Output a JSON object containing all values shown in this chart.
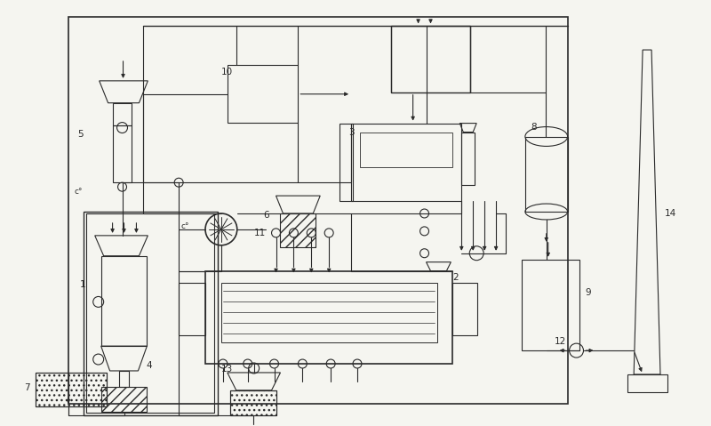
{
  "fig_width": 8.0,
  "fig_height": 4.79,
  "dpi": 100,
  "bg_color": "#f5f5f0",
  "line_color": "#2a2a2a",
  "lw": 0.8
}
